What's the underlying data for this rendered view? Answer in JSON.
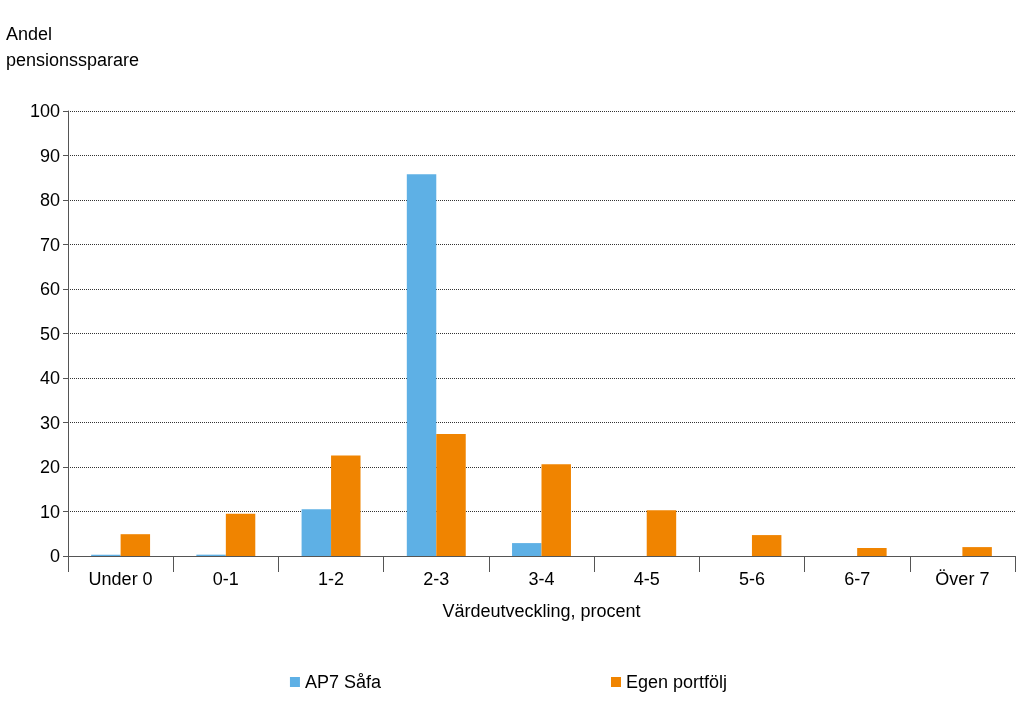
{
  "chart_data": {
    "type": "bar",
    "ylabel": "Andel\npensionssparare",
    "xlabel": "Värdeutveckling, procent",
    "categories": [
      "Under 0",
      "0-1",
      "1-2",
      "2-3",
      "3-4",
      "4-5",
      "5-6",
      "6-7",
      "Över 7"
    ],
    "series": [
      {
        "name": "AP7 Såfa",
        "color": "#5eb0e5",
        "values": [
          0.3,
          0.3,
          10.5,
          85.8,
          2.9,
          0,
          0,
          0,
          0
        ]
      },
      {
        "name": "Egen portfölj",
        "color": "#f08400",
        "values": [
          4.9,
          9.5,
          22.6,
          27.4,
          20.6,
          10.3,
          4.7,
          1.8,
          2.0
        ]
      }
    ],
    "ylim": [
      0,
      100
    ],
    "yticks": [
      0,
      10,
      20,
      30,
      40,
      50,
      60,
      70,
      80,
      90,
      100
    ],
    "grid": "y",
    "legend": "bottom"
  }
}
